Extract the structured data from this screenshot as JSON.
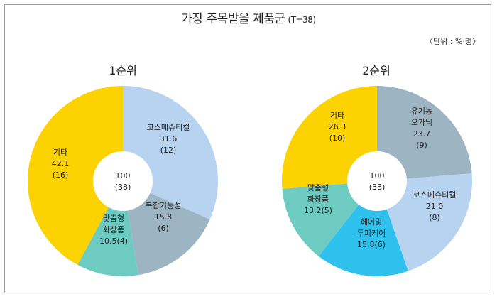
{
  "header": {
    "title": "가장 주목받을 제품군",
    "title_note": "(T=38)",
    "unit": "〈단위 : %·명〉"
  },
  "chart_data": [
    {
      "type": "pie",
      "title": "1순위",
      "center": [
        "100",
        "(38)"
      ],
      "slices": [
        {
          "name": "코스메슈티컬",
          "value": 31.6,
          "count": 12,
          "color": "#b7d3ef",
          "label_lines": [
            "코스메슈티컬",
            "31.6",
            "(12)"
          ]
        },
        {
          "name": "복합기능성",
          "value": 15.8,
          "count": 6,
          "color": "#9db4c3",
          "label_lines": [
            "복합기능성",
            "15.8",
            "(6)"
          ]
        },
        {
          "name": "맞춤형 화장품",
          "value": 10.5,
          "count": 4,
          "color": "#6ecbc2",
          "label_lines": [
            "맞춤형",
            "화장품",
            "10.5(4)"
          ]
        },
        {
          "name": "기타",
          "value": 42.1,
          "count": 16,
          "color": "#fcd200",
          "label_lines": [
            "기타",
            "42.1",
            "(16)"
          ]
        }
      ]
    },
    {
      "type": "pie",
      "title": "2순위",
      "center": [
        "100",
        "(38)"
      ],
      "slices": [
        {
          "name": "유기농 오가닉",
          "value": 23.7,
          "count": 9,
          "color": "#9db4c3",
          "label_lines": [
            "유기농",
            "오가닉",
            "23.7",
            "(9)"
          ]
        },
        {
          "name": "코스메슈티컬",
          "value": 21.0,
          "count": 8,
          "color": "#b7d3ef",
          "label_lines": [
            "코스메슈티컬",
            "21.0",
            "(8)"
          ]
        },
        {
          "name": "헤어및 두피케어",
          "value": 15.8,
          "count": 6,
          "color": "#2ec1ee",
          "label_lines": [
            "헤어및",
            "두피케어",
            "15.8(6)"
          ]
        },
        {
          "name": "맞춤형 화장품",
          "value": 13.2,
          "count": 5,
          "color": "#6ecbc2",
          "label_lines": [
            "맞춤형",
            "화장품",
            "13.2(5)"
          ]
        },
        {
          "name": "기타",
          "value": 26.3,
          "count": 10,
          "color": "#fcd200",
          "label_lines": [
            "기타",
            "26.3",
            "(10)"
          ]
        }
      ]
    }
  ]
}
